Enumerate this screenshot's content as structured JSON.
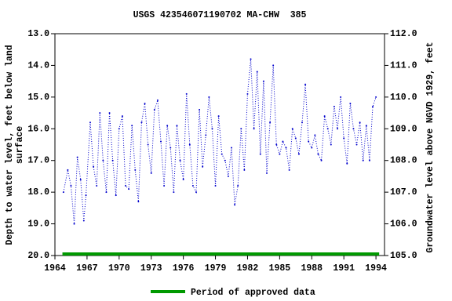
{
  "chart_data": {
    "type": "line",
    "title": "USGS 423546071190702 MA-CHW  385",
    "ylabel": [
      "Depth to water level, feet below land",
      "surface"
    ],
    "y2label": "Groundwater level above NGVD 1929, feet",
    "xlim": [
      1964,
      1994.8
    ],
    "xticks": [
      1964,
      1967,
      1970,
      1973,
      1976,
      1979,
      1982,
      1985,
      1988,
      1991,
      1994
    ],
    "ylim": [
      20,
      13
    ],
    "yticks": [
      {
        "value": 13,
        "label": "13.0"
      },
      {
        "value": 14,
        "label": "14.0"
      },
      {
        "value": 15,
        "label": "15.0"
      },
      {
        "value": 16,
        "label": "16.0"
      },
      {
        "value": 17,
        "label": "17.0"
      },
      {
        "value": 18,
        "label": "18.0"
      },
      {
        "value": 19,
        "label": "19.0"
      },
      {
        "value": 20,
        "label": "20.0"
      }
    ],
    "y2lim": [
      105,
      112
    ],
    "y2ticks": [
      {
        "value": 112,
        "label": "112.0"
      },
      {
        "value": 111,
        "label": "111.0"
      },
      {
        "value": 110,
        "label": "110.0"
      },
      {
        "value": 109,
        "label": "109.0"
      },
      {
        "value": 108,
        "label": "108.0"
      },
      {
        "value": 107,
        "label": "107.0"
      },
      {
        "value": 106,
        "label": "106.0"
      },
      {
        "value": 105,
        "label": "105.0"
      }
    ],
    "x": [
      1964.8,
      1965.2,
      1965.5,
      1965.8,
      1966.1,
      1966.4,
      1966.7,
      1966.9,
      1967.3,
      1967.6,
      1967.9,
      1968.2,
      1968.5,
      1968.8,
      1969.1,
      1969.4,
      1969.7,
      1970.0,
      1970.3,
      1970.6,
      1970.9,
      1971.2,
      1971.5,
      1971.8,
      1972.1,
      1972.4,
      1972.7,
      1973.0,
      1973.3,
      1973.6,
      1973.9,
      1974.2,
      1974.5,
      1974.8,
      1975.1,
      1975.4,
      1975.7,
      1976.0,
      1976.3,
      1976.6,
      1976.9,
      1977.2,
      1977.5,
      1977.8,
      1978.1,
      1978.4,
      1978.7,
      1979.0,
      1979.3,
      1979.6,
      1979.9,
      1980.2,
      1980.5,
      1980.8,
      1981.1,
      1981.4,
      1981.7,
      1982.0,
      1982.3,
      1982.6,
      1982.9,
      1983.2,
      1983.5,
      1983.8,
      1984.1,
      1984.4,
      1984.7,
      1985.0,
      1985.3,
      1985.6,
      1985.9,
      1986.2,
      1986.5,
      1986.8,
      1987.1,
      1987.4,
      1987.7,
      1988.0,
      1988.3,
      1988.6,
      1988.9,
      1989.2,
      1989.5,
      1989.8,
      1990.1,
      1990.4,
      1990.7,
      1991.0,
      1991.3,
      1991.6,
      1991.9,
      1992.2,
      1992.5,
      1992.8,
      1993.1,
      1993.4,
      1993.7,
      1994.0
    ],
    "series": [
      {
        "name": "Depth to water level",
        "color": "#0000cc",
        "values": [
          18.0,
          17.3,
          17.8,
          19.0,
          16.9,
          17.6,
          18.9,
          18.1,
          15.8,
          17.2,
          17.8,
          15.5,
          17.0,
          18.0,
          15.5,
          17.0,
          18.1,
          16.0,
          15.6,
          17.8,
          17.9,
          15.9,
          17.3,
          18.3,
          15.8,
          15.2,
          16.5,
          17.4,
          15.4,
          15.1,
          16.4,
          17.8,
          15.9,
          16.6,
          18.0,
          15.9,
          17.0,
          17.6,
          14.9,
          16.5,
          17.8,
          18.0,
          15.4,
          17.2,
          16.2,
          15.0,
          16.0,
          17.8,
          15.6,
          16.8,
          17.0,
          17.5,
          16.6,
          18.4,
          17.8,
          16.0,
          17.3,
          14.9,
          13.8,
          16.0,
          14.2,
          16.8,
          14.5,
          17.4,
          15.8,
          14.0,
          16.5,
          16.8,
          16.4,
          16.6,
          17.3,
          16.0,
          16.3,
          16.8,
          15.8,
          14.6,
          16.4,
          16.6,
          16.2,
          16.8,
          17.0,
          15.6,
          16.0,
          16.5,
          15.3,
          16.0,
          15.0,
          16.3,
          17.1,
          15.2,
          16.0,
          16.5,
          15.8,
          17.0,
          15.9,
          17.0,
          15.3,
          15.0
        ]
      }
    ],
    "approved_period": {
      "name": "Period of approved data",
      "color": "#009900",
      "x": [
        1964.7,
        1994.3
      ]
    }
  }
}
